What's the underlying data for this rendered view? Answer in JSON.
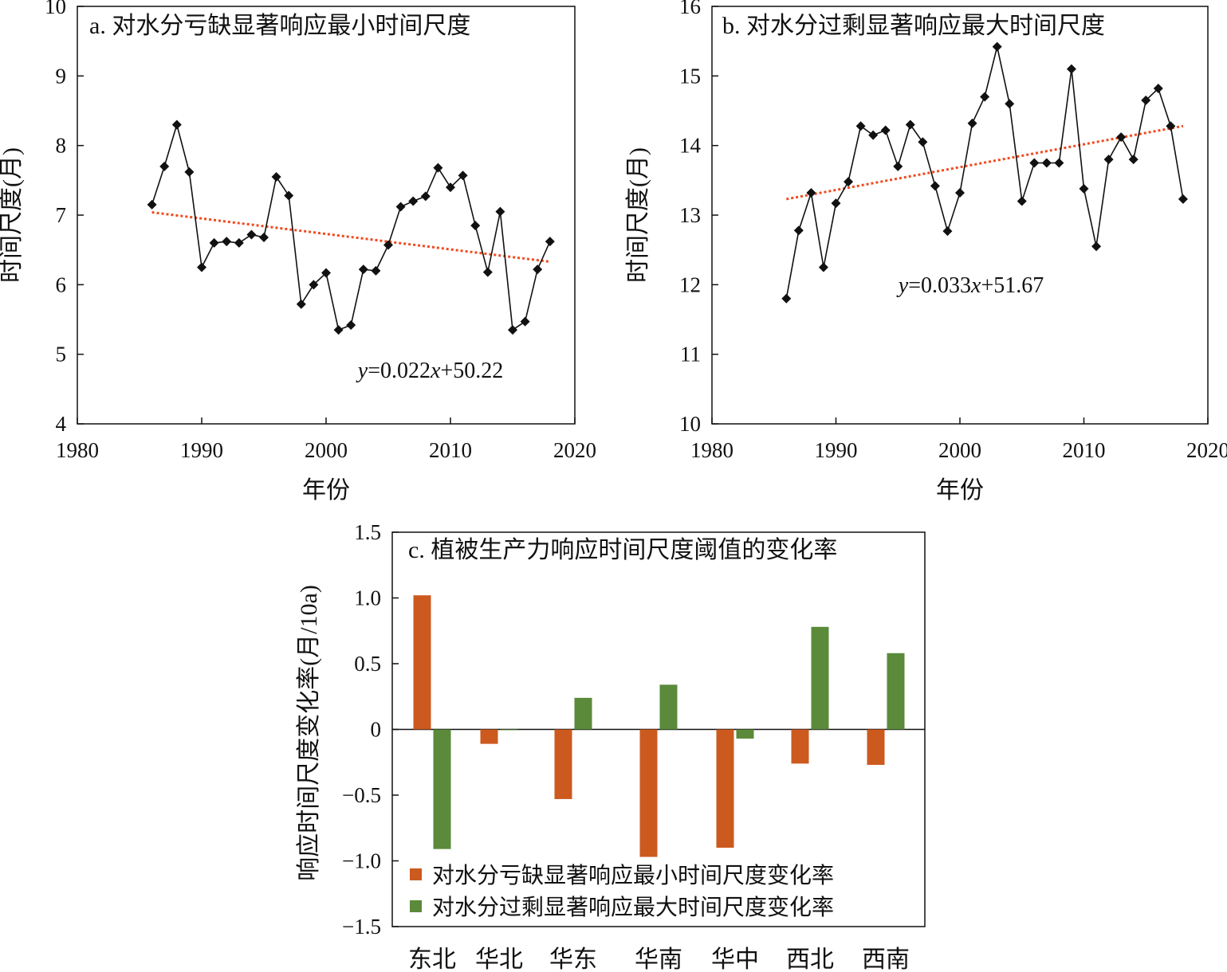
{
  "chart_data": [
    {
      "type": "line",
      "title": "a. 对水分亏缺显著响应最小时间尺度",
      "xlabel": "年份",
      "ylabel": "时间尺度(月)",
      "xlim": [
        1980,
        2020
      ],
      "ylim": [
        4,
        10
      ],
      "xticks": [
        1980,
        1990,
        2000,
        2010,
        2020
      ],
      "yticks": [
        4,
        5,
        6,
        7,
        8,
        9,
        10
      ],
      "grid": false,
      "x": [
        1986,
        1987,
        1988,
        1989,
        1990,
        1991,
        1992,
        1993,
        1994,
        1995,
        1996,
        1997,
        1998,
        1999,
        2000,
        2001,
        2002,
        2003,
        2004,
        2005,
        2006,
        2007,
        2008,
        2009,
        2010,
        2011,
        2012,
        2013,
        2014,
        2015,
        2016,
        2017,
        2018
      ],
      "values": [
        7.15,
        7.7,
        8.3,
        7.62,
        6.25,
        6.6,
        6.62,
        6.6,
        6.72,
        6.68,
        7.55,
        7.28,
        5.72,
        6.0,
        6.17,
        5.35,
        5.42,
        6.22,
        6.2,
        6.57,
        7.12,
        7.2,
        7.27,
        7.68,
        7.4,
        7.57,
        6.85,
        6.18,
        7.05,
        5.35,
        5.47,
        6.22,
        6.62
      ],
      "trend": {
        "x": [
          1986,
          2018
        ],
        "y": [
          7.04,
          6.33
        ]
      },
      "equation": {
        "var": "y",
        "mid": "=0.022",
        "var2": "x",
        "rest": "+50.22"
      }
    },
    {
      "type": "line",
      "title": "b. 对水分过剩显著响应最大时间尺度",
      "xlabel": "年份",
      "ylabel": "时间尺度(月)",
      "xlim": [
        1980,
        2020
      ],
      "ylim": [
        10,
        16
      ],
      "xticks": [
        1980,
        1990,
        2000,
        2010,
        2020
      ],
      "yticks": [
        10,
        11,
        12,
        13,
        14,
        15,
        16
      ],
      "grid": false,
      "x": [
        1986,
        1987,
        1988,
        1989,
        1990,
        1991,
        1992,
        1993,
        1994,
        1995,
        1996,
        1997,
        1998,
        1999,
        2000,
        2001,
        2002,
        2003,
        2004,
        2005,
        2006,
        2007,
        2008,
        2009,
        2010,
        2011,
        2012,
        2013,
        2014,
        2015,
        2016,
        2017,
        2018
      ],
      "values": [
        11.8,
        12.78,
        13.32,
        12.25,
        13.17,
        13.48,
        14.28,
        14.15,
        14.22,
        13.7,
        14.3,
        14.05,
        13.42,
        12.77,
        13.32,
        14.32,
        14.7,
        15.42,
        14.6,
        13.2,
        13.75,
        13.75,
        13.75,
        15.1,
        13.38,
        12.55,
        13.8,
        14.12,
        13.8,
        14.65,
        14.82,
        14.28,
        13.23
      ],
      "trend": {
        "x": [
          1986,
          2018
        ],
        "y": [
          13.23,
          14.28
        ]
      },
      "equation": {
        "var": "y",
        "mid": "=0.033",
        "var2": "x",
        "rest": "+51.67"
      }
    },
    {
      "type": "bar",
      "title": "c. 植被生产力响应时间尺度阈值的变化率",
      "ylabel": "响应时间尺度变化率(月/10a)",
      "ylim": [
        -1.5,
        1.5
      ],
      "yticks": [
        "-1.5",
        "-1.0",
        "-0.5",
        "0",
        "0.5",
        "1.0",
        "1.5"
      ],
      "categories": [
        "东北",
        "华北",
        "华东",
        "华南",
        "华中",
        "西北",
        "西南"
      ],
      "legend_position": "bottom-left",
      "series": [
        {
          "name": "对水分亏缺显著响应最小时间尺度变化率",
          "color": "#cc5a1f",
          "values": [
            1.02,
            -0.11,
            -0.53,
            -0.97,
            -0.9,
            -0.26,
            -0.27
          ]
        },
        {
          "name": "对水分过剩显著响应最大时间尺度变化率",
          "color": "#5a8a3a",
          "values": [
            -0.91,
            0.0,
            0.24,
            0.34,
            -0.07,
            0.78,
            0.58
          ]
        }
      ]
    }
  ]
}
